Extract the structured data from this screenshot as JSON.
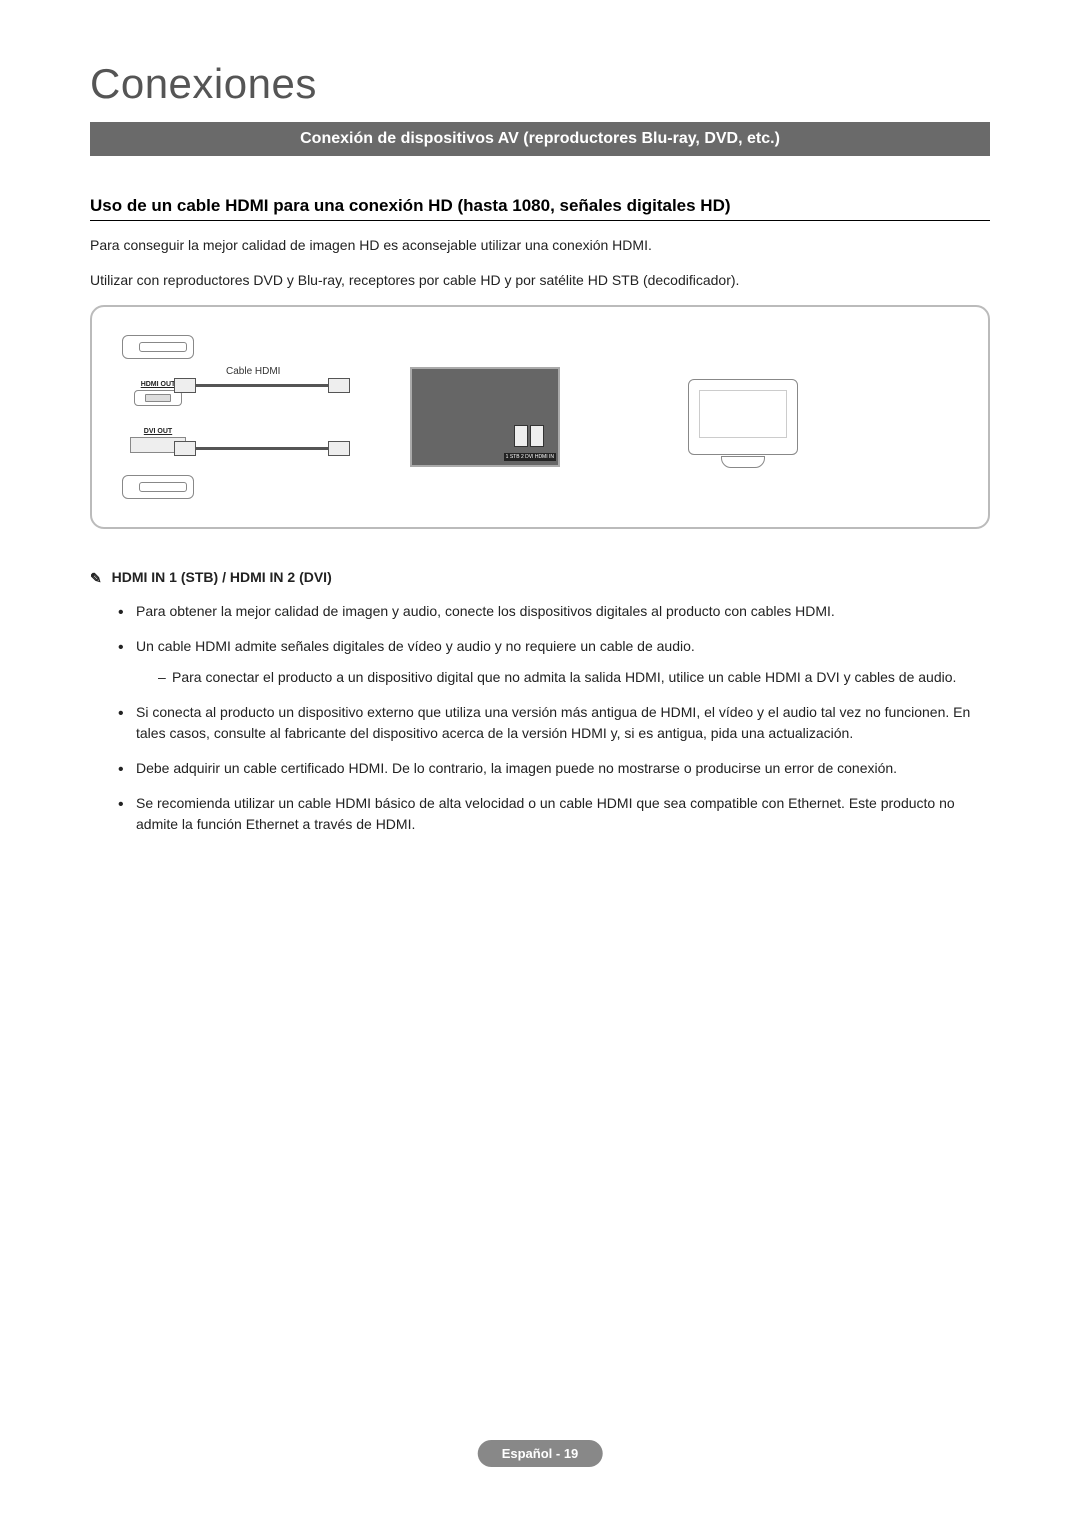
{
  "title": "Conexiones",
  "section_header": "Conexión de dispositivos AV (reproductores Blu-ray, DVD, etc.)",
  "sub_heading": "Uso de un cable HDMI para una conexión HD (hasta 1080, señales digitales HD)",
  "intro_line1": "Para conseguir la mejor calidad de imagen HD es aconsejable utilizar una conexión HDMI.",
  "intro_line2": "Utilizar con reproductores DVD y Blu-ray, receptores por cable HD y por satélite HD STB (decodificador).",
  "diagram": {
    "cable_label": "Cable HDMI",
    "port_hdmi_out": "HDMI OUT",
    "port_dvi_out": "DVI OUT",
    "panel_label": "1 STB   2 DVI\nHDMI IN"
  },
  "note_header": "HDMI IN 1 (STB) / HDMI IN 2 (DVI)",
  "bullets": {
    "b1": "Para obtener la mejor calidad de imagen y audio, conecte los dispositivos digitales al producto con cables HDMI.",
    "b2": "Un cable HDMI admite señales digitales de vídeo y audio y no requiere un cable de audio.",
    "b2_sub": "Para conectar el producto a un dispositivo digital que no admita la salida HDMI, utilice un cable HDMI a DVI y cables de audio.",
    "b3": "Si conecta al producto un dispositivo externo que utiliza una versión más antigua de HDMI, el vídeo y el audio tal vez no funcionen. En tales casos, consulte al fabricante del dispositivo acerca de la versión HDMI y, si es antigua, pida una actualización.",
    "b4": "Debe adquirir un cable certificado HDMI. De lo contrario, la imagen puede no mostrarse o producirse un error de conexión.",
    "b5": "Se recomienda utilizar un cable HDMI básico de alta velocidad o un cable HDMI que sea compatible con Ethernet. Este producto no admite la función Ethernet a través de HDMI."
  },
  "footer": "Español - 19"
}
